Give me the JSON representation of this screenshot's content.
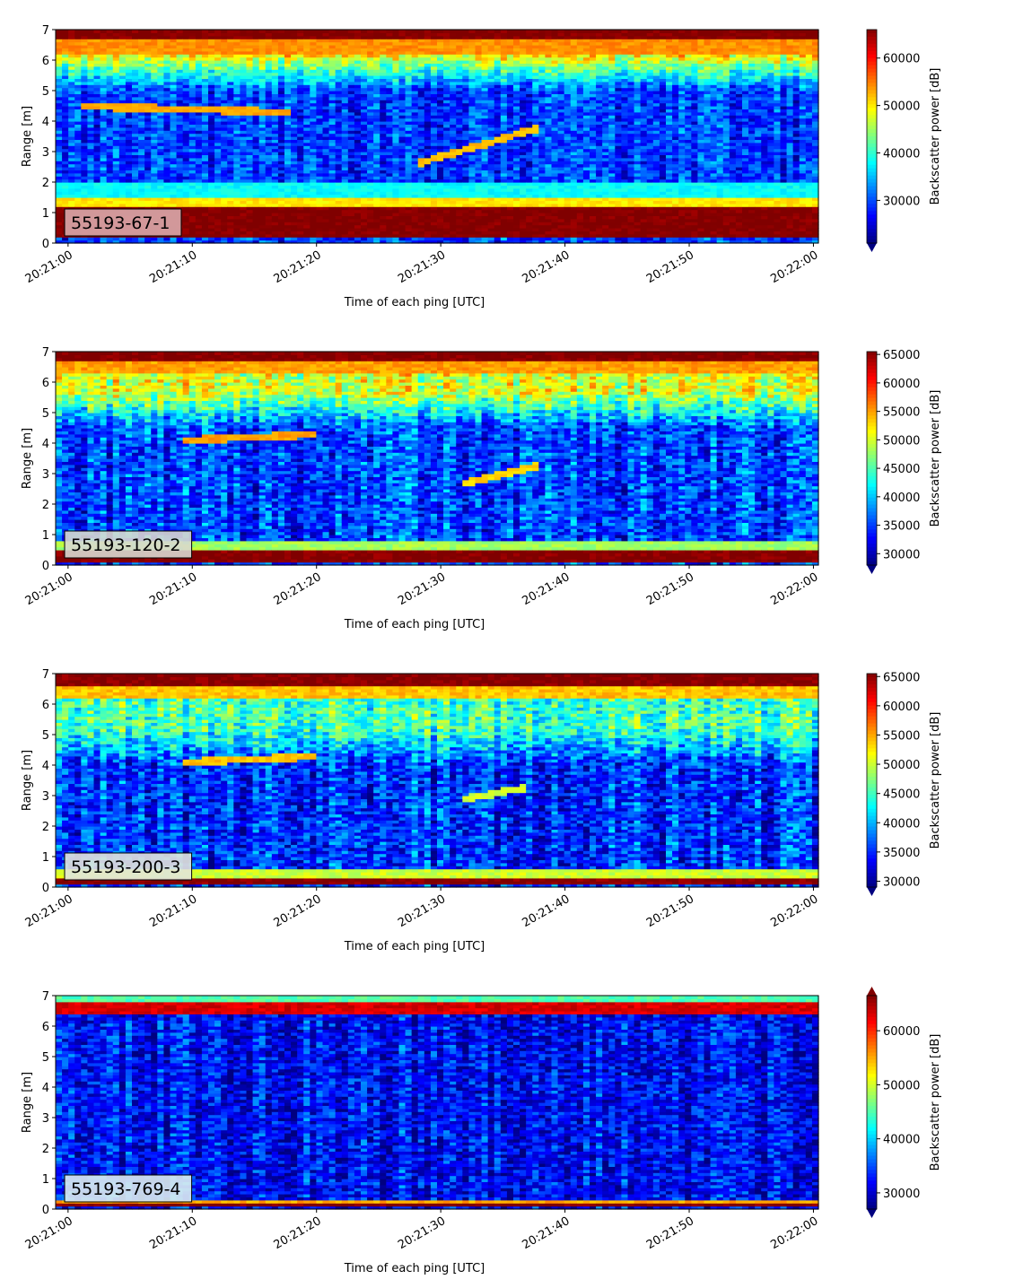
{
  "figure": {
    "panels_count": 4
  },
  "chart_data": [
    {
      "type": "heatmap",
      "label": "55193-67-1",
      "label_bg": "#d9a9ab",
      "xlabel": "Time of each ping [UTC]",
      "ylabel": "Range [m]",
      "x_ticks": [
        "20:21:00",
        "20:21:10",
        "20:21:20",
        "20:21:30",
        "20:21:40",
        "20:21:50",
        "20:22:00"
      ],
      "x_tick_seconds": [
        0,
        10,
        20,
        30,
        40,
        50,
        60
      ],
      "xlim_seconds": [
        -1,
        60.4
      ],
      "y_ticks": [
        0,
        1,
        2,
        3,
        4,
        5,
        6,
        7
      ],
      "ylim": [
        0,
        7
      ],
      "colorbar": {
        "label": "Backscatter power [dB]",
        "range": [
          21000,
          66000
        ],
        "ticks": [
          30000,
          40000,
          50000,
          60000
        ],
        "extend": "min"
      },
      "bands": [
        {
          "low": 0.2,
          "high": 1.2,
          "value": 66000
        },
        {
          "low": 1.2,
          "high": 1.5,
          "value": 50000
        },
        {
          "low": 1.5,
          "high": 2.0,
          "value": 38000
        },
        {
          "low": 6.2,
          "high": 6.7,
          "value": 54000
        },
        {
          "low": 6.7,
          "high": 7.0,
          "value": 66000
        }
      ],
      "background": {
        "value": 29000,
        "upper_value": 50000,
        "upper_from_range": 5.0
      },
      "tracks": [
        {
          "t0": 1,
          "r0": 4.5,
          "t1": 18,
          "r1": 4.3,
          "value": 53000
        },
        {
          "t0": 28,
          "r0": 2.6,
          "t1": 38,
          "r1": 3.8,
          "value": 52000
        }
      ]
    },
    {
      "type": "heatmap",
      "label": "55193-120-2",
      "label_bg": "#d8d8d0",
      "xlabel": "Time of each ping [UTC]",
      "ylabel": "Range [m]",
      "x_ticks": [
        "20:21:00",
        "20:21:10",
        "20:21:20",
        "20:21:30",
        "20:21:40",
        "20:21:50",
        "20:22:00"
      ],
      "x_tick_seconds": [
        0,
        10,
        20,
        30,
        40,
        50,
        60
      ],
      "xlim_seconds": [
        -1,
        60.4
      ],
      "y_ticks": [
        0,
        1,
        2,
        3,
        4,
        5,
        6,
        7
      ],
      "ylim": [
        0,
        7
      ],
      "colorbar": {
        "label": "Backscatter power [dB]",
        "range": [
          28000,
          65500
        ],
        "ticks": [
          30000,
          35000,
          40000,
          45000,
          50000,
          55000,
          60000,
          65000
        ],
        "extend": "min"
      },
      "bands": [
        {
          "low": 0.1,
          "high": 0.5,
          "value": 65500
        },
        {
          "low": 0.5,
          "high": 0.8,
          "value": 48000
        },
        {
          "low": 6.3,
          "high": 6.7,
          "value": 55000
        },
        {
          "low": 6.7,
          "high": 7.0,
          "value": 65500
        }
      ],
      "background": {
        "value": 35000,
        "upper_value": 50000,
        "upper_from_range": 4.5
      },
      "tracks": [
        {
          "t0": 9,
          "r0": 4.1,
          "t1": 20,
          "r1": 4.3,
          "value": 55000
        },
        {
          "t0": 32,
          "r0": 2.7,
          "t1": 38,
          "r1": 3.3,
          "value": 53000
        }
      ]
    },
    {
      "type": "heatmap",
      "label": "55193-200-3",
      "label_bg": "#e2e6dc",
      "xlabel": "Time of each ping [UTC]",
      "ylabel": "Range [m]",
      "x_ticks": [
        "20:21:00",
        "20:21:10",
        "20:21:20",
        "20:21:30",
        "20:21:40",
        "20:21:50",
        "20:22:00"
      ],
      "x_tick_seconds": [
        0,
        10,
        20,
        30,
        40,
        50,
        60
      ],
      "xlim_seconds": [
        -1,
        60.4
      ],
      "y_ticks": [
        0,
        1,
        2,
        3,
        4,
        5,
        6,
        7
      ],
      "ylim": [
        0,
        7
      ],
      "colorbar": {
        "label": "Backscatter power [dB]",
        "range": [
          29000,
          65500
        ],
        "ticks": [
          30000,
          35000,
          40000,
          45000,
          50000,
          55000,
          60000,
          65000
        ],
        "extend": "min"
      },
      "bands": [
        {
          "low": 0.1,
          "high": 0.35,
          "value": 65500
        },
        {
          "low": 0.35,
          "high": 0.6,
          "value": 50000
        },
        {
          "low": 6.2,
          "high": 6.6,
          "value": 54000
        },
        {
          "low": 6.6,
          "high": 7.0,
          "value": 65500
        }
      ],
      "background": {
        "value": 35000,
        "upper_value": 45000,
        "upper_from_range": 4.0
      },
      "tracks": [
        {
          "t0": 9,
          "r0": 4.1,
          "t1": 20,
          "r1": 4.3,
          "value": 54000
        },
        {
          "t0": 32,
          "r0": 2.9,
          "t1": 37,
          "r1": 3.3,
          "value": 50000
        }
      ]
    },
    {
      "type": "heatmap",
      "label": "55193-769-4",
      "label_bg": "#dcecf0",
      "xlabel": "Time of each ping [UTC]",
      "ylabel": "Range [m]",
      "x_ticks": [
        "20:21:00",
        "20:21:10",
        "20:21:20",
        "20:21:30",
        "20:21:40",
        "20:21:50",
        "20:22:00"
      ],
      "x_tick_seconds": [
        0,
        10,
        20,
        30,
        40,
        50,
        60
      ],
      "xlim_seconds": [
        -1,
        60.4
      ],
      "y_ticks": [
        0,
        1,
        2,
        3,
        4,
        5,
        6,
        7
      ],
      "ylim": [
        0,
        7
      ],
      "colorbar": {
        "label": "Backscatter power [dB]",
        "range": [
          27000,
          66500
        ],
        "ticks": [
          30000,
          40000,
          50000,
          60000
        ],
        "extend": "both"
      },
      "bands": [
        {
          "low": 0.1,
          "high": 0.25,
          "value": 66500
        },
        {
          "low": 0.25,
          "high": 0.35,
          "value": 55000
        },
        {
          "low": 6.4,
          "high": 6.8,
          "value": 63000
        },
        {
          "low": 6.8,
          "high": 7.0,
          "value": 45000
        }
      ],
      "background": {
        "value": 32000,
        "upper_value": 30000,
        "upper_from_range": 6.0
      },
      "tracks": []
    }
  ]
}
